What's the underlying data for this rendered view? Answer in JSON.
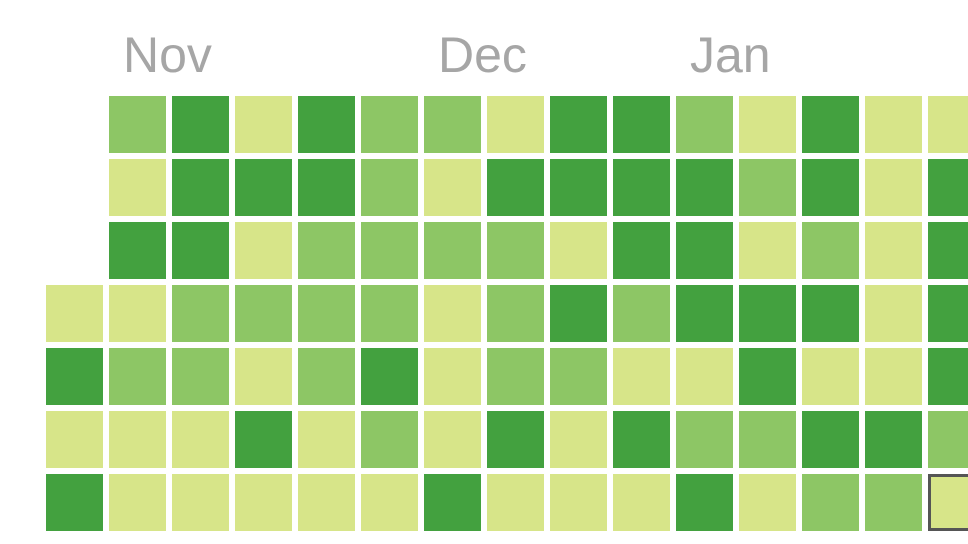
{
  "chart_data": {
    "type": "heatmap",
    "title": "",
    "month_labels": [
      {
        "label": "Nov",
        "week": 1
      },
      {
        "label": "Dec",
        "week": 6
      },
      {
        "label": "Jan",
        "week": 10
      }
    ],
    "levels": [
      1,
      2,
      3
    ],
    "level_colors": {
      "1": "#d7e589",
      "2": "#8dc665",
      "3": "#43a13f"
    },
    "highlight_color": "#555555",
    "highlighted_cell": {
      "week": 14,
      "day": 6
    },
    "weeks": [
      [
        null,
        null,
        null,
        1,
        3,
        1,
        3
      ],
      [
        2,
        1,
        3,
        1,
        2,
        1,
        1
      ],
      [
        3,
        3,
        3,
        2,
        2,
        1,
        1
      ],
      [
        1,
        3,
        1,
        2,
        1,
        3,
        1
      ],
      [
        3,
        3,
        2,
        2,
        2,
        1,
        1
      ],
      [
        2,
        2,
        2,
        2,
        3,
        2,
        1
      ],
      [
        2,
        1,
        2,
        1,
        1,
        1,
        3
      ],
      [
        1,
        3,
        2,
        2,
        2,
        3,
        1
      ],
      [
        3,
        3,
        1,
        3,
        2,
        1,
        1
      ],
      [
        3,
        3,
        3,
        2,
        1,
        3,
        1
      ],
      [
        2,
        3,
        3,
        3,
        1,
        2,
        3
      ],
      [
        1,
        2,
        1,
        3,
        3,
        2,
        1
      ],
      [
        3,
        3,
        2,
        3,
        1,
        3,
        2
      ],
      [
        1,
        1,
        1,
        1,
        1,
        3,
        2
      ],
      [
        1,
        3,
        3,
        3,
        3,
        2,
        1
      ]
    ]
  }
}
